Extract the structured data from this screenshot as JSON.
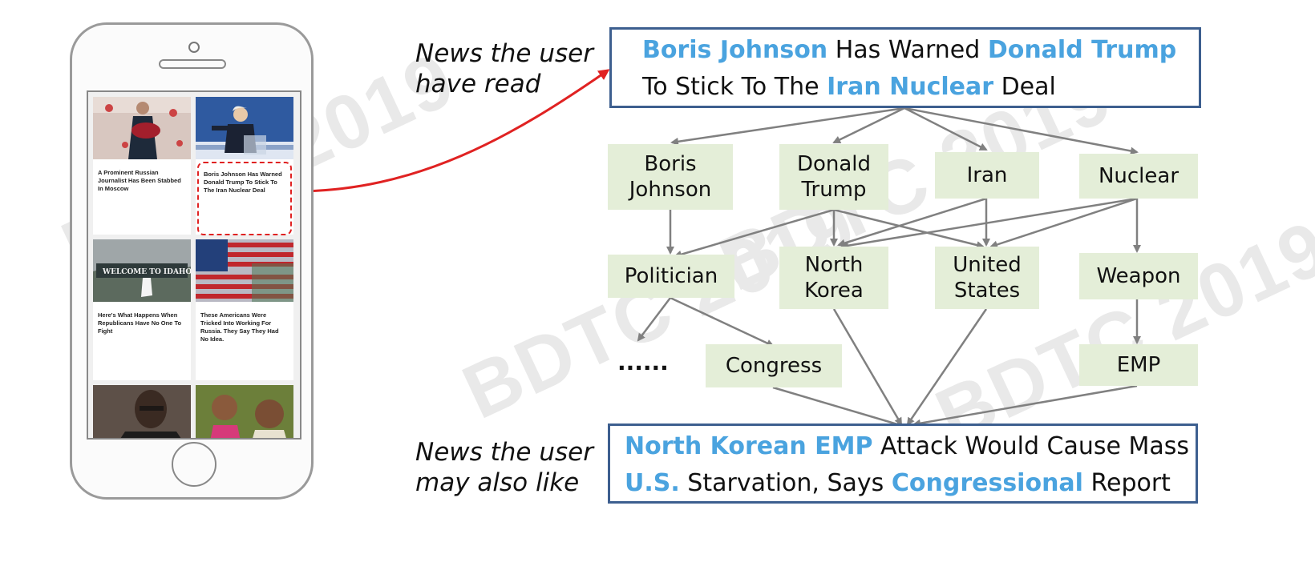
{
  "phone": {
    "cards": [
      {
        "text": "A Prominent Russian Journalist Has Been Stabbed In Moscow",
        "image": "woman-with-flowers-photo"
      },
      {
        "text": "Boris Johnson Has Warned Donald Trump To Stick To The Iran Nuclear Deal",
        "image": "speaker-at-podium-photo"
      },
      {
        "text": "Here's What Happens When Republicans Have No One To Fight",
        "image": "welcome-to-idaho-sign-photo"
      },
      {
        "text": "These Americans Were Tricked Into Working For Russia. They Say They Had No Idea.",
        "image": "us-flag-photo"
      },
      {
        "text": "",
        "image": "elderly-man-photo"
      },
      {
        "text": "",
        "image": "smiling-children-photo"
      }
    ]
  },
  "labels": {
    "read_line1": "News the user",
    "read_line2": "have read",
    "like_line1": "News the user",
    "like_line2": "may also like"
  },
  "read_news": {
    "seg1": "Boris Johnson",
    "seg2": " Has Warned ",
    "seg3": "Donald Trump",
    "seg4": "To Stick To The ",
    "seg5": "Iran Nuclear",
    "seg6": " Deal"
  },
  "liked_news": {
    "seg1": "North Korean EMP",
    "seg2": " Attack Would Cause Mass",
    "seg3": "U.S.",
    "seg4": " Starvation, Says ",
    "seg5": "Congressional",
    "seg6": " Report"
  },
  "nodes": {
    "boris_johnson": {
      "line1": "Boris",
      "line2": "Johnson"
    },
    "donald_trump": {
      "line1": "Donald",
      "line2": "Trump"
    },
    "iran": "Iran",
    "nuclear": "Nuclear",
    "politician": "Politician",
    "north_korea": {
      "line1": "North",
      "line2": "Korea"
    },
    "united_states": {
      "line1": "United",
      "line2": "States"
    },
    "weapon": "Weapon",
    "congress": "Congress",
    "emp": "EMP",
    "ellipsis": "......"
  },
  "watermark": "BDTC 2019",
  "colors": {
    "highlight": "#4aa3df",
    "box_border": "#3d5f8f",
    "node_fill": "#e4eed8",
    "arrow": "#808080",
    "link_arrow": "#e02222"
  }
}
